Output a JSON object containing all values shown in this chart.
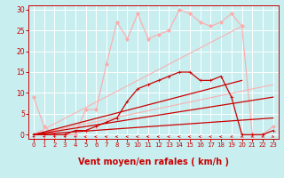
{
  "background_color": "#c8eef0",
  "grid_color": "#aacccc",
  "xlabel": "Vent moyen/en rafales ( km/h )",
  "xlabel_color": "#cc0000",
  "tick_color": "#cc0000",
  "yticks": [
    0,
    5,
    10,
    15,
    20,
    25,
    30
  ],
  "xticks": [
    0,
    1,
    2,
    3,
    4,
    5,
    6,
    7,
    8,
    9,
    10,
    11,
    12,
    13,
    14,
    15,
    16,
    17,
    18,
    19,
    20,
    21,
    22,
    23
  ],
  "xlim": [
    -0.5,
    23.5
  ],
  "ylim": [
    -1.0,
    31
  ],
  "lines": [
    {
      "x": [
        0,
        1,
        2,
        3,
        4,
        5,
        6,
        7,
        8,
        9,
        10,
        11,
        12,
        13,
        14,
        15,
        16,
        17,
        18,
        19,
        20,
        21,
        22,
        23
      ],
      "y": [
        9,
        2,
        0,
        0,
        0,
        6,
        6,
        17,
        27,
        23,
        29,
        23,
        24,
        25,
        30,
        29,
        27,
        26,
        27,
        29,
        26,
        0,
        0,
        2
      ],
      "color": "#ffaaaa",
      "linewidth": 0.8,
      "marker": "D",
      "markersize": 2.0,
      "alpha": 1.0,
      "zorder": 2
    },
    {
      "x": [
        0,
        20
      ],
      "y": [
        0,
        26
      ],
      "color": "#ffaaaa",
      "linewidth": 0.8,
      "marker": null,
      "alpha": 0.9,
      "zorder": 2
    },
    {
      "x": [
        0,
        23
      ],
      "y": [
        0,
        12
      ],
      "color": "#ffaaaa",
      "linewidth": 0.8,
      "marker": null,
      "alpha": 0.9,
      "zorder": 2
    },
    {
      "x": [
        0,
        1,
        2,
        3,
        4,
        5,
        6,
        7,
        8,
        9,
        10,
        11,
        12,
        13,
        14,
        15,
        16,
        17,
        18,
        19,
        20,
        21,
        22,
        23
      ],
      "y": [
        0,
        0,
        0,
        0,
        1,
        1,
        2,
        3,
        4,
        8,
        11,
        12,
        13,
        14,
        15,
        15,
        13,
        13,
        14,
        9,
        0,
        0,
        0,
        1
      ],
      "color": "#cc0000",
      "linewidth": 0.9,
      "marker": "+",
      "markersize": 3.5,
      "alpha": 1.0,
      "zorder": 3
    },
    {
      "x": [
        0,
        20
      ],
      "y": [
        0,
        13
      ],
      "color": "#cc0000",
      "linewidth": 0.9,
      "marker": null,
      "alpha": 1.0,
      "zorder": 3
    },
    {
      "x": [
        0,
        23
      ],
      "y": [
        0,
        9
      ],
      "color": "#cc0000",
      "linewidth": 0.9,
      "marker": null,
      "alpha": 1.0,
      "zorder": 3
    },
    {
      "x": [
        0,
        23
      ],
      "y": [
        0,
        4
      ],
      "color": "#cc0000",
      "linewidth": 0.9,
      "marker": null,
      "alpha": 1.0,
      "zorder": 3
    }
  ],
  "wind_arrows": {
    "x": [
      0,
      1,
      2,
      3,
      4,
      5,
      6,
      7,
      8,
      9,
      10,
      11,
      12,
      13,
      14,
      15,
      16,
      17,
      18,
      19,
      20,
      21,
      22,
      23
    ],
    "directions": [
      225,
      225,
      225,
      225,
      225,
      270,
      270,
      270,
      270,
      270,
      270,
      270,
      270,
      270,
      270,
      270,
      270,
      270,
      270,
      315,
      315,
      315,
      315,
      45
    ],
    "y": -0.5,
    "color": "#cc0000",
    "size": 5
  }
}
